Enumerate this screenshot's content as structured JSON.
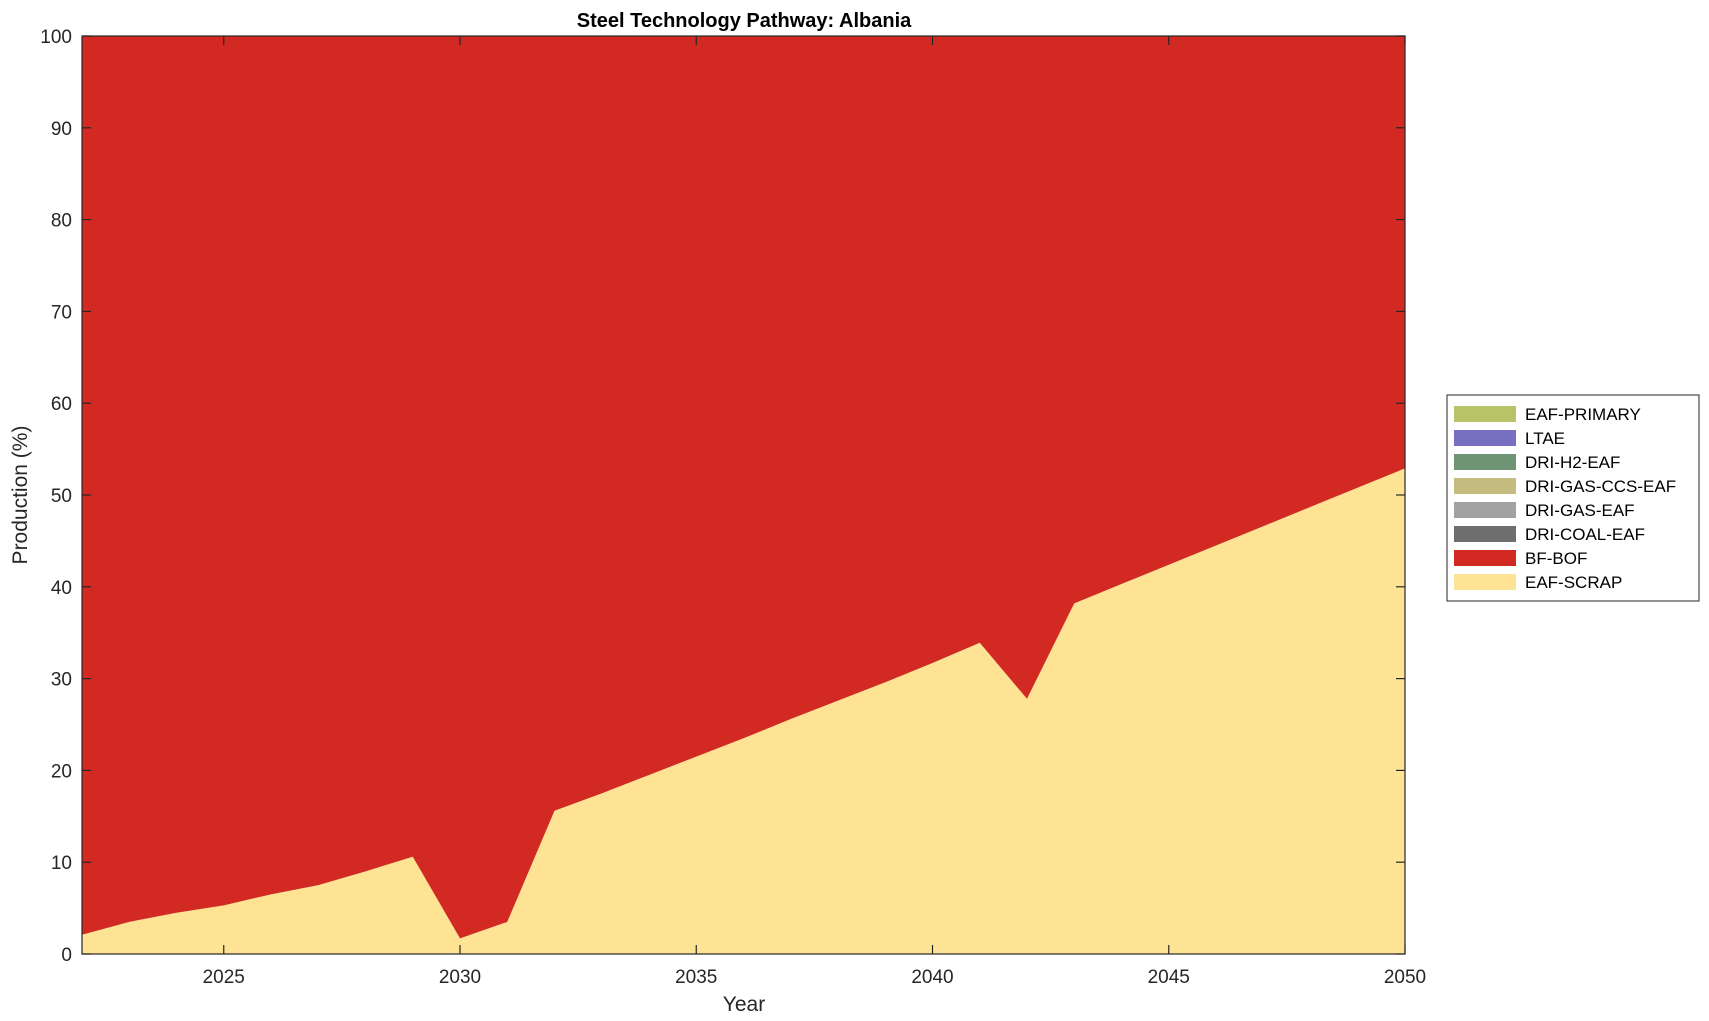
{
  "chart_data": {
    "type": "area",
    "stacked": true,
    "title": "Steel Technology Pathway: Albania",
    "xlabel": "Year",
    "ylabel": "Production (%)",
    "xlim": [
      2022,
      2050
    ],
    "ylim": [
      0,
      100
    ],
    "x_ticks": [
      2025,
      2030,
      2035,
      2040,
      2045,
      2050
    ],
    "y_ticks": [
      0,
      10,
      20,
      30,
      40,
      50,
      60,
      70,
      80,
      90,
      100
    ],
    "grid": false,
    "legend_position": "right",
    "x": [
      2022,
      2023,
      2024,
      2025,
      2026,
      2027,
      2028,
      2029,
      2030,
      2031,
      2032,
      2033,
      2034,
      2035,
      2036,
      2037,
      2038,
      2039,
      2040,
      2041,
      2042,
      2043,
      2044,
      2045,
      2046,
      2047,
      2048,
      2049,
      2050
    ],
    "series": [
      {
        "name": "EAF-SCRAP",
        "color": "#FDE393",
        "values": [
          2.1,
          3.5,
          4.5,
          5.3,
          6.5,
          7.5,
          9.0,
          10.6,
          1.7,
          3.5,
          15.6,
          17.5,
          19.5,
          21.5,
          23.5,
          25.6,
          27.6,
          29.6,
          31.7,
          33.9,
          27.8,
          38.2,
          40.3,
          42.4,
          44.5,
          46.6,
          48.7,
          50.8,
          52.9
        ]
      },
      {
        "name": "BF-BOF",
        "color": "#D22A22",
        "values": [
          97.9,
          96.5,
          95.5,
          94.7,
          93.5,
          92.5,
          91.0,
          89.4,
          98.3,
          96.5,
          84.4,
          82.5,
          80.5,
          78.5,
          76.5,
          74.4,
          72.4,
          70.4,
          68.3,
          66.1,
          72.2,
          61.8,
          59.7,
          57.6,
          55.5,
          53.4,
          51.3,
          49.2,
          47.1
        ]
      },
      {
        "name": "DRI-COAL-EAF",
        "color": "#6E6E6E",
        "values": [
          0,
          0,
          0,
          0,
          0,
          0,
          0,
          0,
          0,
          0,
          0,
          0,
          0,
          0,
          0,
          0,
          0,
          0,
          0,
          0,
          0,
          0,
          0,
          0,
          0,
          0,
          0,
          0,
          0
        ]
      },
      {
        "name": "DRI-GAS-EAF",
        "color": "#A2A2A2",
        "values": [
          0,
          0,
          0,
          0,
          0,
          0,
          0,
          0,
          0,
          0,
          0,
          0,
          0,
          0,
          0,
          0,
          0,
          0,
          0,
          0,
          0,
          0,
          0,
          0,
          0,
          0,
          0,
          0,
          0
        ]
      },
      {
        "name": "DRI-GAS-CCS-EAF",
        "color": "#C4BC7E",
        "values": [
          0,
          0,
          0,
          0,
          0,
          0,
          0,
          0,
          0,
          0,
          0,
          0,
          0,
          0,
          0,
          0,
          0,
          0,
          0,
          0,
          0,
          0,
          0,
          0,
          0,
          0,
          0,
          0,
          0
        ]
      },
      {
        "name": "DRI-H2-EAF",
        "color": "#6E9474",
        "values": [
          0,
          0,
          0,
          0,
          0,
          0,
          0,
          0,
          0,
          0,
          0,
          0,
          0,
          0,
          0,
          0,
          0,
          0,
          0,
          0,
          0,
          0,
          0,
          0,
          0,
          0,
          0,
          0,
          0
        ]
      },
      {
        "name": "LTAE",
        "color": "#776FBF",
        "values": [
          0,
          0,
          0,
          0,
          0,
          0,
          0,
          0,
          0,
          0,
          0,
          0,
          0,
          0,
          0,
          0,
          0,
          0,
          0,
          0,
          0,
          0,
          0,
          0,
          0,
          0,
          0,
          0,
          0
        ]
      },
      {
        "name": "EAF-PRIMARY",
        "color": "#B8C266",
        "values": [
          0,
          0,
          0,
          0,
          0,
          0,
          0,
          0,
          0,
          0,
          0,
          0,
          0,
          0,
          0,
          0,
          0,
          0,
          0,
          0,
          0,
          0,
          0,
          0,
          0,
          0,
          0,
          0,
          0
        ]
      }
    ],
    "legend_order": [
      "EAF-PRIMARY",
      "LTAE",
      "DRI-H2-EAF",
      "DRI-GAS-CCS-EAF",
      "DRI-GAS-EAF",
      "DRI-COAL-EAF",
      "BF-BOF",
      "EAF-SCRAP"
    ]
  }
}
